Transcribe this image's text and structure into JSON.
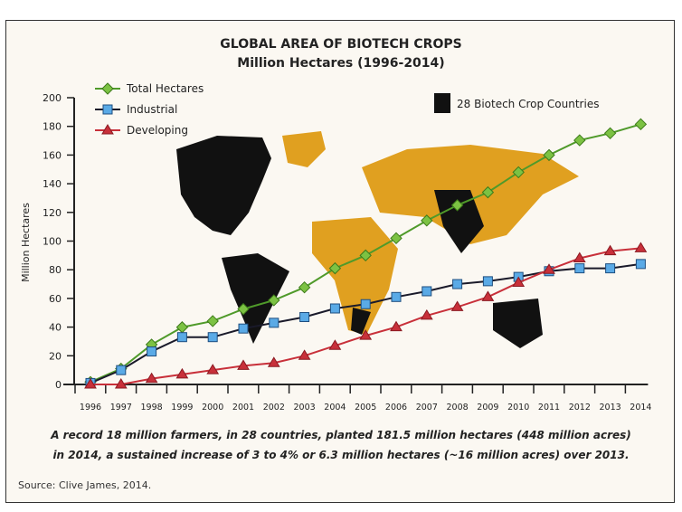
{
  "chart_data": {
    "type": "line",
    "title": "GLOBAL AREA OF BIOTECH CROPS",
    "subtitle": "Million Hectares (1996-2014)",
    "ylabel": "Million Hectares",
    "xlabel": "",
    "ylim": [
      0,
      200
    ],
    "yticks": [
      0,
      20,
      40,
      60,
      80,
      100,
      120,
      140,
      160,
      180,
      200
    ],
    "x": [
      1996,
      1997,
      1998,
      1999,
      2000,
      2001,
      2002,
      2003,
      2004,
      2005,
      2006,
      2007,
      2008,
      2009,
      2010,
      2011,
      2012,
      2013,
      2014
    ],
    "series": [
      {
        "name": "Total Hectares",
        "color": "#5aa02c",
        "marker": "diamond",
        "values": [
          1.7,
          11,
          27.8,
          39.9,
          44.2,
          52.6,
          58.7,
          67.7,
          81,
          90,
          102,
          114.3,
          125,
          134,
          148,
          160,
          170.3,
          175.2,
          181.5
        ]
      },
      {
        "name": "Industrial",
        "color": "#4a90d0",
        "marker": "square",
        "values": [
          1,
          10,
          23,
          33,
          33,
          39,
          43,
          47,
          53,
          56,
          61,
          65,
          70,
          72,
          75,
          79,
          81,
          81,
          84
        ]
      },
      {
        "name": "Developing",
        "color": "#c8303a",
        "marker": "triangle",
        "values": [
          0,
          0,
          4,
          7,
          10,
          13,
          15,
          20,
          27,
          34,
          40,
          48,
          54,
          61,
          71,
          80,
          88,
          93,
          95
        ]
      }
    ],
    "map_legend": "28 Biotech Crop Countries",
    "map_colors": {
      "biotech": "#111111",
      "other": "#e0a020"
    },
    "legend_placement": "top-left",
    "grid": false
  },
  "caption": {
    "line1": "A record 18 million farmers, in 28 countries, planted 181.5 million hectares (448 million acres)",
    "line2": "in 2014, a sustained increase of 3 to 4% or 6.3 million hectares (~16 million acres) over 2013."
  },
  "source": "Source: Clive James, 2014."
}
